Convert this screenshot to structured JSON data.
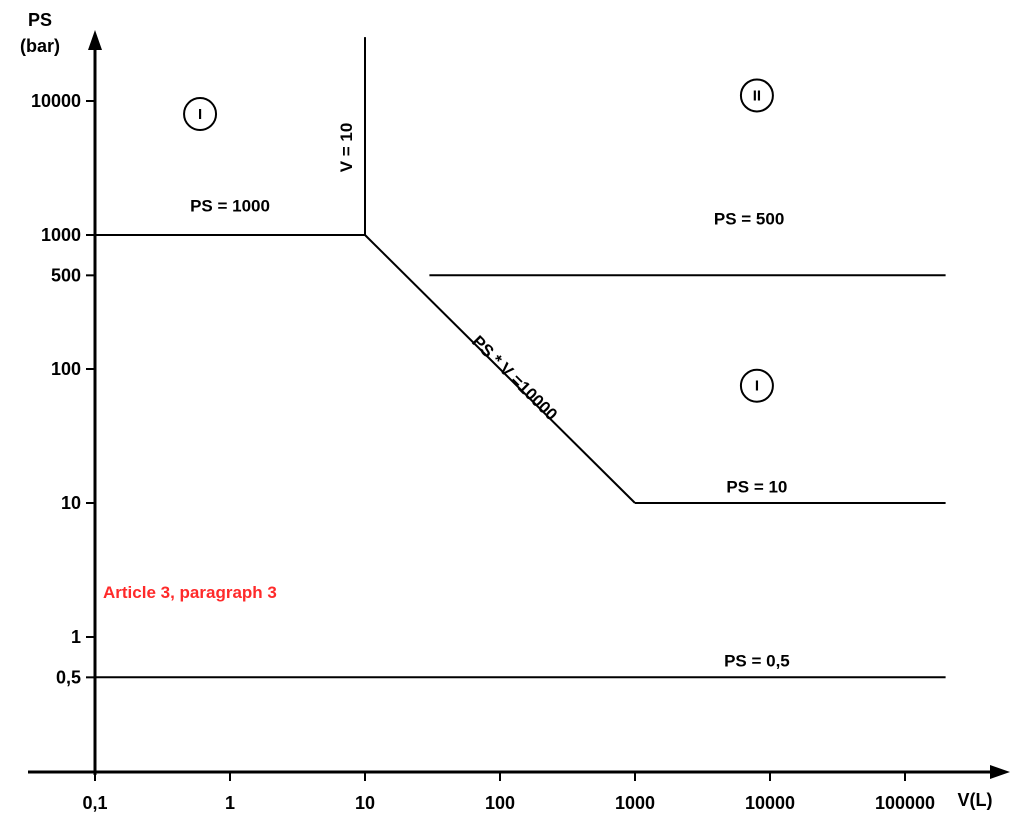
{
  "chart_data": {
    "type": "line",
    "x_scale": "log",
    "y_scale": "log",
    "ylabel_line1": "PS",
    "ylabel_line2": "(bar)",
    "xlabel": "V(L)",
    "x_ticks": [
      {
        "value": 0.1,
        "label": "0,1"
      },
      {
        "value": 1,
        "label": "1"
      },
      {
        "value": 10,
        "label": "10"
      },
      {
        "value": 100,
        "label": "100"
      },
      {
        "value": 1000,
        "label": "1000"
      },
      {
        "value": 10000,
        "label": "10000"
      },
      {
        "value": 100000,
        "label": "100000"
      }
    ],
    "y_ticks": [
      {
        "value": 0.5,
        "label": "0,5"
      },
      {
        "value": 1,
        "label": "1"
      },
      {
        "value": 10,
        "label": "10"
      },
      {
        "value": 100,
        "label": "100"
      },
      {
        "value": 500,
        "label": "500"
      },
      {
        "value": 1000,
        "label": "1000"
      },
      {
        "value": 10000,
        "label": "10000"
      }
    ],
    "series": [
      {
        "points": [
          [
            0.1,
            1000
          ],
          [
            10,
            1000
          ]
        ]
      },
      {
        "points": [
          [
            10,
            1000
          ],
          [
            10,
            30000
          ]
        ]
      },
      {
        "points": [
          [
            10,
            1000
          ],
          [
            1000,
            10
          ]
        ]
      },
      {
        "points": [
          [
            30,
            500
          ],
          [
            200000,
            500
          ]
        ]
      },
      {
        "points": [
          [
            1000,
            10
          ],
          [
            200000,
            10
          ]
        ]
      },
      {
        "points": [
          [
            0.1,
            0.5
          ],
          [
            200000,
            0.5
          ]
        ]
      }
    ],
    "annotations": [
      {
        "text": "PS = 1000",
        "x": 1,
        "y": 1500,
        "rotate": false
      },
      {
        "text": "V = 10",
        "x": 8,
        "y": 4500,
        "rotate": true
      },
      {
        "text": "PS = 500",
        "x": 7000,
        "y": 1200,
        "rotate": false
      },
      {
        "text": "PS * V =10000",
        "x": 120,
        "y": 80,
        "rotate": "slope"
      },
      {
        "text": "PS = 10",
        "x": 8000,
        "y": 12,
        "rotate": false
      },
      {
        "text": "PS = 0,5",
        "x": 8000,
        "y": 0.6,
        "rotate": false
      }
    ],
    "regions": [
      {
        "label": "I",
        "x": 0.6,
        "y": 8000
      },
      {
        "label": "II",
        "x": 8000,
        "y": 11000
      },
      {
        "label": "I",
        "x": 8000,
        "y": 75
      }
    ],
    "note": {
      "text": "Article 3, paragraph 3",
      "color": "#ff2a2a"
    },
    "line_color": "#000000"
  }
}
